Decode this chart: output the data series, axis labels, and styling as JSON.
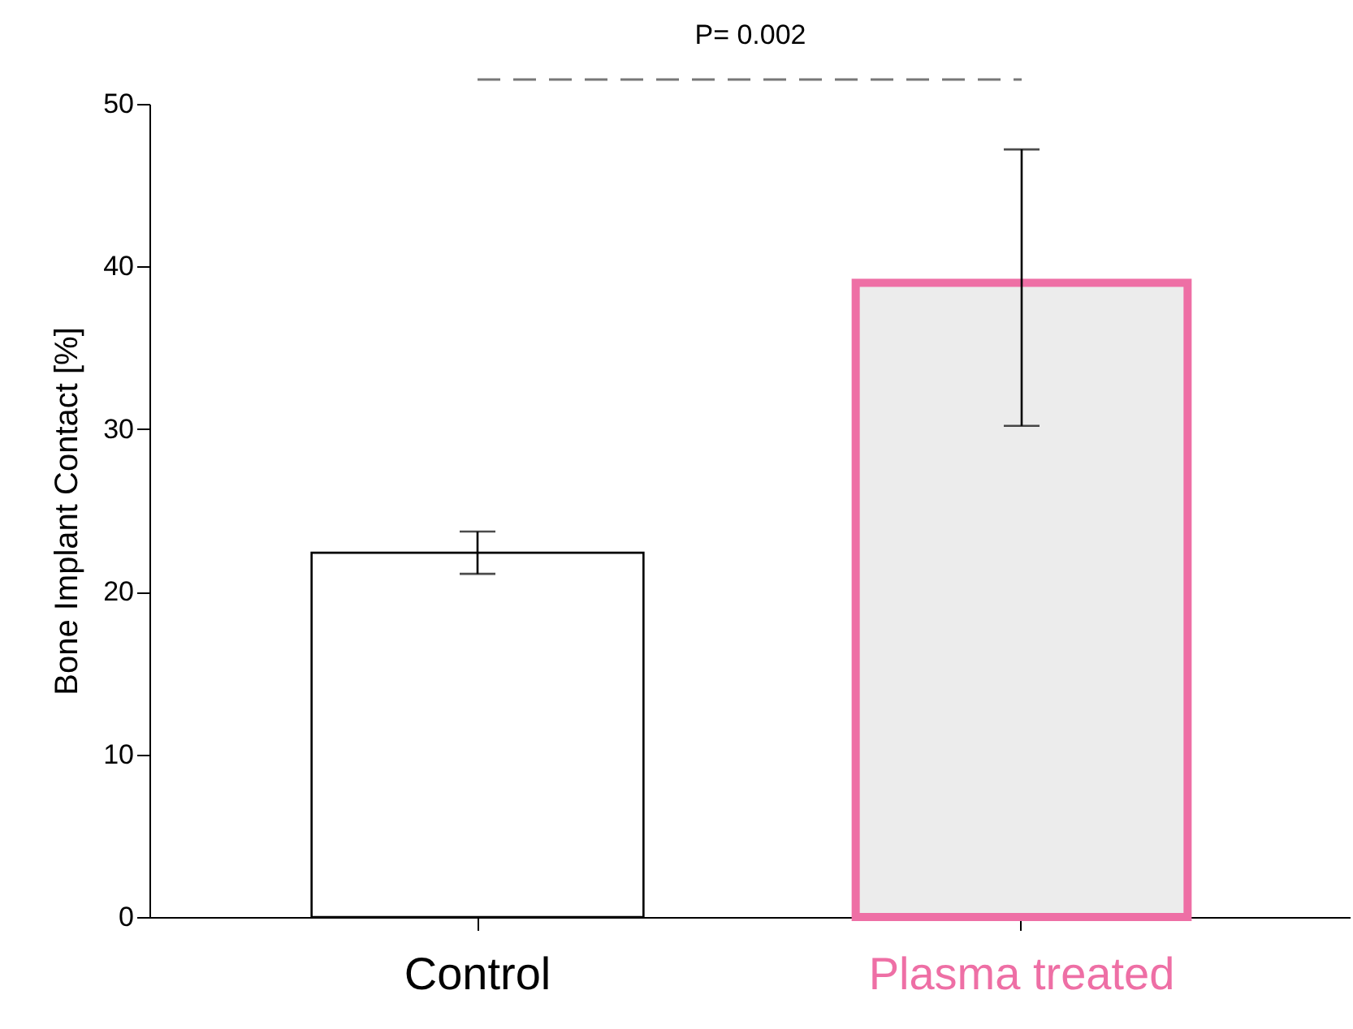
{
  "chart_data": {
    "type": "bar",
    "ylabel": "Bone Implant Contact [%]",
    "categories": [
      "Control",
      "Plasma treated"
    ],
    "values": [
      22.4,
      39.0
    ],
    "errors": [
      [
        21.1,
        23.7
      ],
      [
        30.2,
        47.2
      ]
    ],
    "colors": [
      "#000000",
      "#ee6fa5"
    ],
    "ylim": [
      0,
      50
    ],
    "yticks": [
      0,
      10,
      20,
      30,
      40,
      50
    ],
    "grid": false,
    "annotations": [
      "P= 0.002"
    ]
  }
}
